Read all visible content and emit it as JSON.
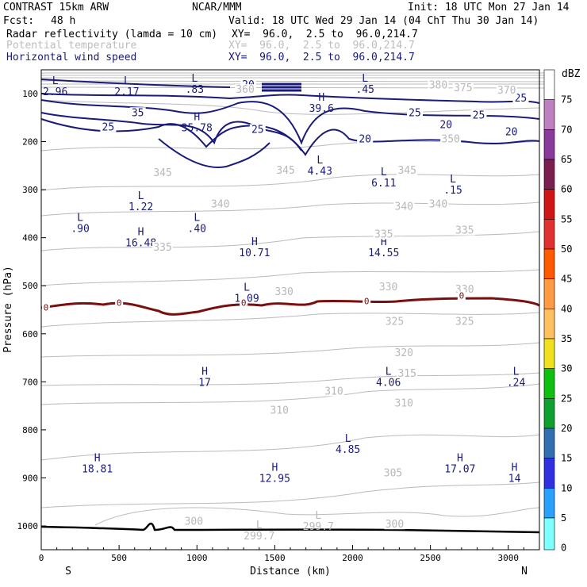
{
  "header": {
    "model": "CONTRAST 15km ARW",
    "org": "NCAR/MMM",
    "init": "Init: 18 UTC Mon 27 Jan 14",
    "fcst_label": "Fcst:",
    "fcst_value": "48 h",
    "valid": "Valid: 18 UTC Wed 29 Jan 14 (04 ChT Thu 30 Jan 14)",
    "fields": [
      {
        "name": "Radar reflectivity (lamda = 10 cm)",
        "xy": "XY=  96.0,  2.5 to  96.0,214.7"
      },
      {
        "name": "Potential temperature",
        "xy": "XY=  96.0,  2.5 to  96.0,214.7"
      },
      {
        "name": "Horizontal wind speed",
        "xy": "XY=  96.0,  2.5 to  96.0,214.7"
      }
    ]
  },
  "colors": {
    "wind": "#1a1a7a",
    "theta": "#b8b8b8",
    "zero_line": "#7a0f0f",
    "terrain": "#000000"
  },
  "chart_data": {
    "type": "cross-section",
    "title": "CONTRAST 15km ARW",
    "xlabel": "Distance (km)",
    "ylabel": "Pressure (hPa)",
    "xlim": [
      0,
      3200
    ],
    "ylim": [
      1050,
      60
    ],
    "x_ticks": [
      0,
      500,
      1000,
      1500,
      2000,
      2500,
      3000
    ],
    "x_tick_labels": [
      "0",
      "500",
      "1000",
      "1500",
      "2000",
      "2500",
      "3000"
    ],
    "y_ticks": [
      100,
      200,
      300,
      400,
      500,
      600,
      700,
      800,
      900,
      1000
    ],
    "y_tick_labels": [
      "100",
      "200",
      "300",
      "400",
      "500",
      "600",
      "700",
      "800",
      "900",
      "1000"
    ],
    "left_end_label": "S",
    "right_end_label": "N",
    "colorbar": {
      "unit": "dBZ",
      "levels": [
        "75",
        "70",
        "65",
        "60",
        "55",
        "50",
        "45",
        "40",
        "35",
        "30",
        "25",
        "20",
        "15",
        "10",
        "5",
        "0"
      ],
      "colors": [
        "#ffffff",
        "#c080c0",
        "#8a3a9a",
        "#7a1f4f",
        "#d01515",
        "#e03030",
        "#ff5a00",
        "#ff9a45",
        "#ffc060",
        "#f0e020",
        "#10c010",
        "#10a030",
        "#3070b0",
        "#3030e0",
        "#2aa0ff",
        "#80ffff"
      ]
    },
    "wind_extrema": [
      {
        "type": "L",
        "value": "2.96",
        "x": 90,
        "p": 80
      },
      {
        "type": "L",
        "value": "2.17",
        "x": 550,
        "p": 80
      },
      {
        "type": "L",
        "value": ".83",
        "x": 985,
        "p": 75
      },
      {
        "type": "L",
        "value": ".45",
        "x": 2080,
        "p": 75
      },
      {
        "type": "H",
        "value": "39.6",
        "x": 1800,
        "p": 115
      },
      {
        "type": "H",
        "value": "35.78",
        "x": 1000,
        "p": 155
      },
      {
        "type": "L",
        "value": "4.43",
        "x": 1790,
        "p": 245
      },
      {
        "type": "L",
        "value": "6.11",
        "x": 2200,
        "p": 270
      },
      {
        "type": "L",
        "value": ".15",
        "x": 2645,
        "p": 285
      },
      {
        "type": "L",
        "value": "1.22",
        "x": 640,
        "p": 320
      },
      {
        "type": "L",
        "value": ".90",
        "x": 250,
        "p": 365
      },
      {
        "type": "L",
        "value": ".40",
        "x": 1000,
        "p": 365
      },
      {
        "type": "H",
        "value": "16.48",
        "x": 640,
        "p": 395
      },
      {
        "type": "H",
        "value": "10.71",
        "x": 1370,
        "p": 415
      },
      {
        "type": "H",
        "value": "14.55",
        "x": 2200,
        "p": 415
      },
      {
        "type": "L",
        "value": "1.09",
        "x": 1320,
        "p": 510
      },
      {
        "type": "H",
        "value": "17",
        "x": 1050,
        "p": 685
      },
      {
        "type": "L",
        "value": "4.06",
        "x": 2230,
        "p": 685
      },
      {
        "type": "L",
        "value": ".24",
        "x": 3050,
        "p": 685
      },
      {
        "type": "L",
        "value": "4.85",
        "x": 1970,
        "p": 825
      },
      {
        "type": "H",
        "value": "18.81",
        "x": 360,
        "p": 865
      },
      {
        "type": "H",
        "value": "17.07",
        "x": 2690,
        "p": 865
      },
      {
        "type": "H",
        "value": "12.95",
        "x": 1500,
        "p": 885
      },
      {
        "type": "H",
        "value": "14",
        "x": 3040,
        "p": 885
      }
    ],
    "theta_extrema": [
      {
        "type": "L",
        "value": "299.7",
        "x": 1400,
        "p": 1005
      },
      {
        "type": "L",
        "value": "299.7",
        "x": 1780,
        "p": 985
      }
    ],
    "wind_contour_labels": [
      {
        "text": "20",
        "x": 1330,
        "p": 87
      },
      {
        "text": "25",
        "x": 3080,
        "p": 115
      },
      {
        "text": "35",
        "x": 620,
        "p": 145
      },
      {
        "text": "25",
        "x": 2400,
        "p": 145
      },
      {
        "text": "25",
        "x": 2810,
        "p": 150
      },
      {
        "text": "25",
        "x": 430,
        "p": 175
      },
      {
        "text": "25",
        "x": 1390,
        "p": 180
      },
      {
        "text": "20",
        "x": 2600,
        "p": 170
      },
      {
        "text": "20",
        "x": 3020,
        "p": 185
      },
      {
        "text": "20",
        "x": 2080,
        "p": 200
      }
    ],
    "theta_contour_labels": [
      {
        "text": "380",
        "x": 2550,
        "p": 88
      },
      {
        "text": "375",
        "x": 2710,
        "p": 93
      },
      {
        "text": "370",
        "x": 2990,
        "p": 98
      },
      {
        "text": "360",
        "x": 1310,
        "p": 97
      },
      {
        "text": "350",
        "x": 2630,
        "p": 200
      },
      {
        "text": "345",
        "x": 780,
        "p": 270
      },
      {
        "text": "345",
        "x": 1570,
        "p": 265
      },
      {
        "text": "345",
        "x": 2350,
        "p": 265
      },
      {
        "text": "340",
        "x": 1150,
        "p": 335
      },
      {
        "text": "340",
        "x": 2330,
        "p": 340
      },
      {
        "text": "340",
        "x": 2550,
        "p": 335
      },
      {
        "text": "335",
        "x": 780,
        "p": 425
      },
      {
        "text": "335",
        "x": 2200,
        "p": 398
      },
      {
        "text": "335",
        "x": 2720,
        "p": 390
      },
      {
        "text": "330",
        "x": 1560,
        "p": 518
      },
      {
        "text": "330",
        "x": 2230,
        "p": 508
      },
      {
        "text": "330",
        "x": 2720,
        "p": 513
      },
      {
        "text": "325",
        "x": 2270,
        "p": 580
      },
      {
        "text": "325",
        "x": 2720,
        "p": 580
      },
      {
        "text": "320",
        "x": 2330,
        "p": 645
      },
      {
        "text": "315",
        "x": 2350,
        "p": 688
      },
      {
        "text": "310",
        "x": 1880,
        "p": 725
      },
      {
        "text": "310",
        "x": 1530,
        "p": 765
      },
      {
        "text": "310",
        "x": 2330,
        "p": 750
      },
      {
        "text": "305",
        "x": 2260,
        "p": 895
      },
      {
        "text": "300",
        "x": 980,
        "p": 996
      },
      {
        "text": "300",
        "x": 2270,
        "p": 1002
      }
    ],
    "zero_labels": [
      {
        "text": "0",
        "x": 30,
        "p": 550
      },
      {
        "text": "0",
        "x": 500,
        "p": 540
      },
      {
        "text": "0",
        "x": 1300,
        "p": 540
      },
      {
        "text": "0",
        "x": 2090,
        "p": 537
      },
      {
        "text": "0",
        "x": 2700,
        "p": 525
      }
    ]
  }
}
